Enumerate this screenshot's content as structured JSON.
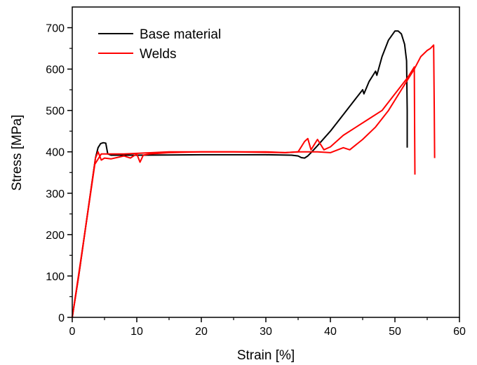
{
  "chart_data": {
    "type": "line",
    "xlabel": "Strain [%]",
    "ylabel": "Stress [MPa]",
    "xlim": [
      0,
      60
    ],
    "ylim": [
      0,
      750
    ],
    "x_ticks": [
      "0",
      "10",
      "20",
      "30",
      "40",
      "50",
      "60"
    ],
    "y_ticks": [
      "0",
      "100",
      "200",
      "300",
      "400",
      "500",
      "600",
      "700"
    ],
    "grid": false,
    "legend_position": "top-left",
    "series": [
      {
        "name": "Base material",
        "color": "#000000",
        "x": [
          0,
          1,
          2,
          3,
          3.6,
          4.0,
          4.4,
          4.8,
          5.2,
          5.5,
          6.0,
          10,
          20,
          30,
          34,
          35,
          35.5,
          36,
          36.5,
          37,
          38,
          40,
          42,
          44,
          45,
          45.2,
          46,
          47,
          47.2,
          48,
          49,
          50,
          50.5,
          51,
          51.5,
          51.8,
          51.9,
          51.9
        ],
        "y": [
          0,
          100,
          210,
          320,
          385,
          410,
          420,
          422,
          421,
          395,
          392,
          392,
          393,
          393,
          392,
          390,
          386,
          385,
          390,
          398,
          415,
          450,
          490,
          530,
          550,
          540,
          570,
          595,
          585,
          630,
          670,
          692,
          692,
          685,
          660,
          620,
          500,
          410
        ]
      },
      {
        "name": "Welds",
        "color": "#ff0000",
        "x": [
          0,
          1,
          2,
          3,
          3.6,
          4.0,
          4.5,
          5,
          6,
          8,
          9,
          10,
          10.5,
          11,
          12,
          15,
          20,
          25,
          30,
          33,
          35,
          36,
          36.5,
          37,
          38,
          39,
          40,
          42,
          44,
          46,
          48,
          50,
          52,
          53,
          53.05,
          53.1
        ],
        "y": [
          0,
          100,
          210,
          320,
          385,
          400,
          380,
          385,
          383,
          390,
          385,
          395,
          375,
          392,
          395,
          398,
          400,
          400,
          400,
          398,
          400,
          425,
          432,
          405,
          430,
          405,
          412,
          440,
          460,
          480,
          500,
          540,
          580,
          605,
          450,
          345
        ]
      },
      {
        "x": [
          0,
          2,
          3.5,
          4.5,
          8,
          15,
          25,
          33,
          35,
          38,
          40,
          42,
          43,
          45,
          47,
          49,
          51,
          53,
          54,
          55,
          55.5,
          56.0,
          56.1,
          56.15
        ],
        "y": [
          0,
          210,
          370,
          395,
          395,
          400,
          400,
          398,
          400,
          400,
          398,
          410,
          405,
          430,
          460,
          500,
          550,
          600,
          630,
          645,
          650,
          658,
          500,
          385
        ]
      }
    ]
  }
}
